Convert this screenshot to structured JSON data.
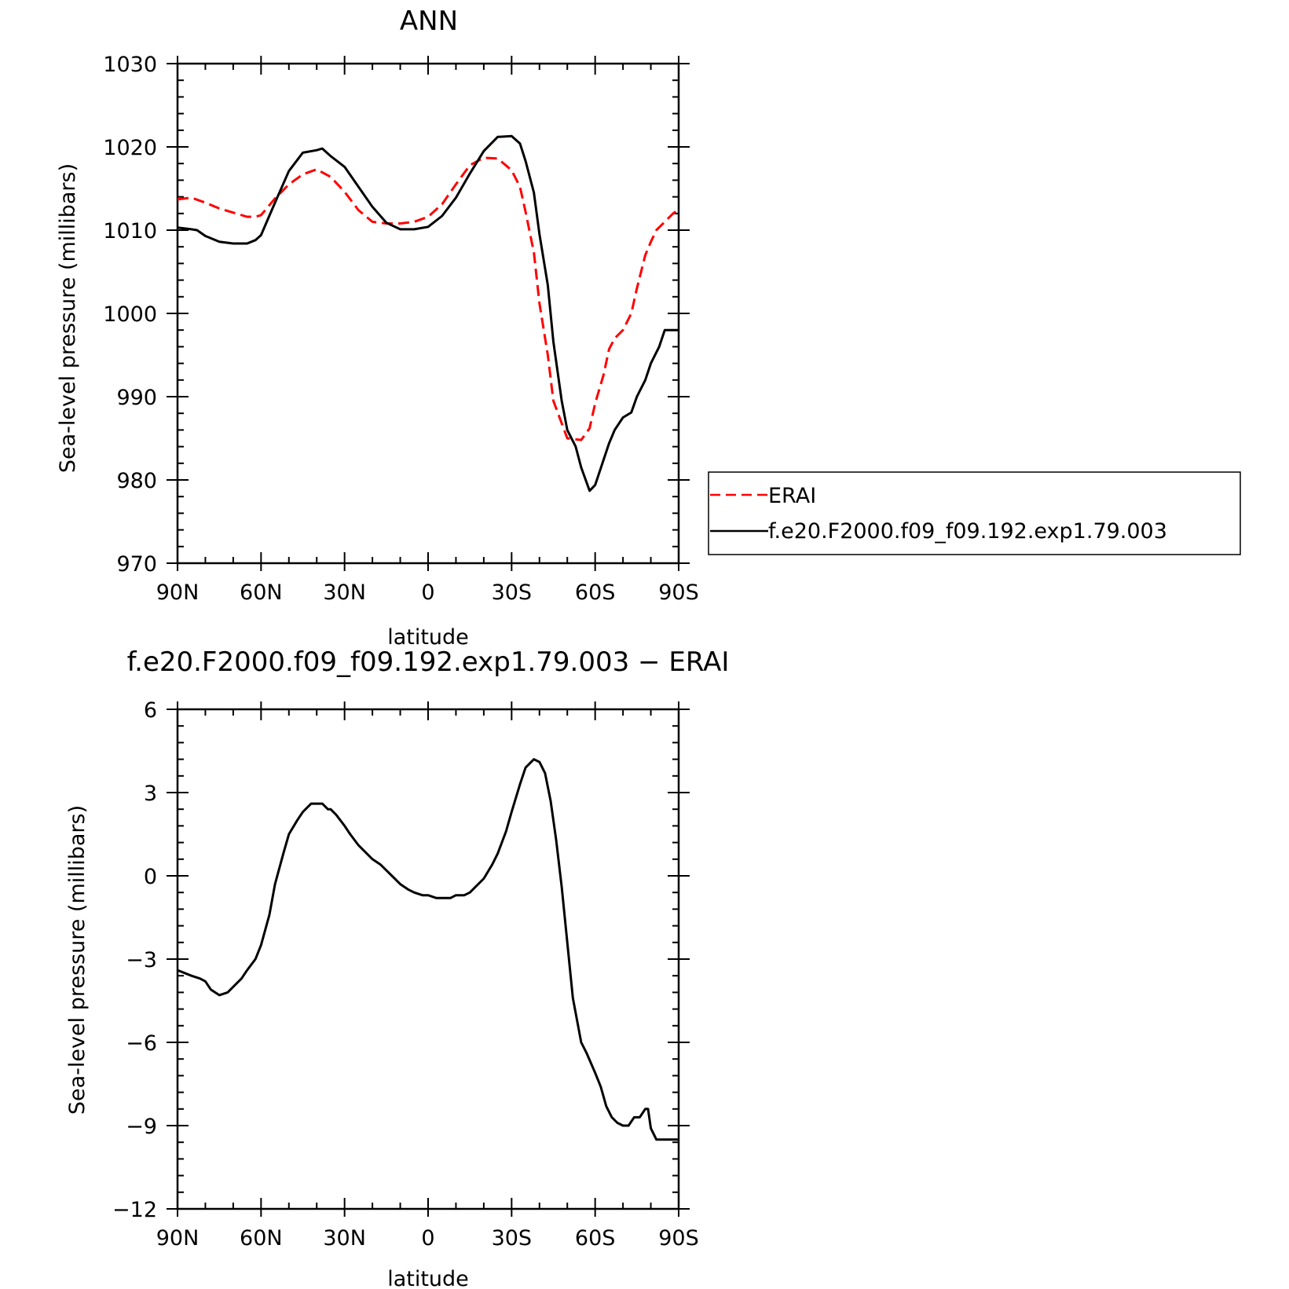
{
  "chart_data": [
    {
      "type": "line",
      "title": "ANN",
      "xlabel": "latitude",
      "ylabel": "Sea-level pressure (millibars)",
      "xlim": [
        90,
        -90
      ],
      "ylim": [
        970,
        1030
      ],
      "x_ticks": [
        {
          "value": 90,
          "label": "90N"
        },
        {
          "value": 60,
          "label": "60N"
        },
        {
          "value": 30,
          "label": "30N"
        },
        {
          "value": 0,
          "label": "0"
        },
        {
          "value": -30,
          "label": "30S"
        },
        {
          "value": -60,
          "label": "60S"
        },
        {
          "value": -90,
          "label": "90S"
        }
      ],
      "y_ticks": [
        {
          "value": 1030,
          "label": "1030"
        },
        {
          "value": 1020,
          "label": "1020"
        },
        {
          "value": 1010,
          "label": "1010"
        },
        {
          "value": 1000,
          "label": "1000"
        },
        {
          "value": 990,
          "label": "990"
        },
        {
          "value": 980,
          "label": "980"
        },
        {
          "value": 970,
          "label": "970"
        }
      ],
      "legend": "right",
      "series": [
        {
          "name": "ERAI",
          "color": "#ff0000",
          "dash": true,
          "x": [
            90,
            85,
            80,
            75,
            70,
            65,
            62,
            60,
            55,
            50,
            45,
            40,
            35,
            30,
            25,
            20,
            15,
            10,
            5,
            0,
            -5,
            -10,
            -15,
            -20,
            -25,
            -30,
            -33,
            -35,
            -38,
            -40,
            -43,
            -45,
            -50,
            -55,
            -58,
            -60,
            -63,
            -65,
            -67,
            -70,
            -73,
            -75,
            -78,
            -80,
            -82,
            -85,
            -88,
            -90
          ],
          "y": [
            1013.7,
            1013.9,
            1013.3,
            1012.6,
            1012.1,
            1011.6,
            1011.6,
            1011.8,
            1013.8,
            1015.5,
            1016.7,
            1017.3,
            1016.4,
            1014.6,
            1012.4,
            1011.0,
            1010.8,
            1010.8,
            1011.0,
            1011.6,
            1013.1,
            1015.5,
            1017.8,
            1018.7,
            1018.6,
            1017.2,
            1015.2,
            1012.2,
            1007.3,
            1001.2,
            995.0,
            989.5,
            985.0,
            984.8,
            986.2,
            989.2,
            992.6,
            995.7,
            997.0,
            998.0,
            1000.0,
            1003.0,
            1007.0,
            1008.6,
            1010.0,
            1011.0,
            1012.0,
            1012.5
          ],
          "note_x_units": "latitude in degrees, positive = N"
        },
        {
          "name": "f.e20.F2000.f09_f09.192.exp1.79.003",
          "color": "#000000",
          "dash": false,
          "x": [
            90,
            85,
            83,
            80,
            75,
            70,
            67,
            65,
            62,
            60,
            55,
            50,
            45,
            40,
            38,
            35,
            30,
            25,
            20,
            15,
            10,
            5,
            0,
            -5,
            -10,
            -15,
            -20,
            -25,
            -30,
            -33,
            -35,
            -38,
            -40,
            -43,
            -45,
            -48,
            -50,
            -53,
            -55,
            -58,
            -60,
            -62,
            -63,
            -65,
            -67,
            -70,
            -73,
            -75,
            -78,
            -80,
            -83,
            -85,
            -88,
            -90
          ],
          "y": [
            1010.3,
            1010.1,
            1010.0,
            1009.3,
            1008.6,
            1008.4,
            1008.4,
            1008.4,
            1008.8,
            1009.4,
            1013.3,
            1017.1,
            1019.3,
            1019.6,
            1019.8,
            1018.9,
            1017.6,
            1015.2,
            1012.8,
            1010.9,
            1010.1,
            1010.1,
            1010.4,
            1011.7,
            1013.9,
            1016.8,
            1019.5,
            1021.2,
            1021.3,
            1020.4,
            1018.3,
            1014.5,
            1009.5,
            1003.4,
            996.6,
            989.5,
            986.0,
            984.0,
            981.5,
            978.7,
            979.4,
            981.4,
            982.4,
            984.4,
            986.0,
            987.5,
            988.1,
            990.0,
            992.0,
            994.0,
            996.0,
            998.0,
            998.0,
            998.0
          ]
        }
      ]
    },
    {
      "type": "line",
      "title": "f.e20.F2000.f09_f09.192.exp1.79.003 − ERAI",
      "xlabel": "latitude",
      "ylabel": "Sea-level pressure (millibars)",
      "xlim": [
        90,
        -90
      ],
      "ylim": [
        -12,
        6
      ],
      "x_ticks": [
        {
          "value": 90,
          "label": "90N"
        },
        {
          "value": 60,
          "label": "60N"
        },
        {
          "value": 30,
          "label": "30N"
        },
        {
          "value": 0,
          "label": "0"
        },
        {
          "value": -30,
          "label": "30S"
        },
        {
          "value": -60,
          "label": "60S"
        },
        {
          "value": -90,
          "label": "90S"
        }
      ],
      "y_ticks": [
        {
          "value": 6,
          "label": "6"
        },
        {
          "value": 3,
          "label": "3"
        },
        {
          "value": 0,
          "label": "0"
        },
        {
          "value": -3,
          "label": "−3"
        },
        {
          "value": -6,
          "label": "−6"
        },
        {
          "value": -9,
          "label": "−9"
        },
        {
          "value": -12,
          "label": "−12"
        }
      ],
      "series": [
        {
          "color": "#000000",
          "dash": false,
          "x": [
            90,
            85,
            82,
            80,
            78,
            75,
            72,
            70,
            67,
            65,
            62,
            60,
            57,
            55,
            52,
            50,
            47,
            45,
            42,
            40,
            38,
            36,
            35,
            33,
            30,
            28,
            25,
            22,
            20,
            17,
            15,
            12,
            10,
            7,
            5,
            2,
            0,
            -3,
            -5,
            -8,
            -10,
            -13,
            -15,
            -18,
            -20,
            -23,
            -25,
            -28,
            -30,
            -33,
            -35,
            -38,
            -40,
            -42,
            -44,
            -46,
            -48,
            -50,
            -52,
            -55,
            -57,
            -60,
            -62,
            -64,
            -66,
            -68,
            -70,
            -72,
            -74,
            -76,
            -78,
            -79,
            -80,
            -81,
            -82,
            -83,
            -84,
            -85,
            -86,
            -87,
            -88,
            -89,
            -90
          ],
          "y": [
            -3.4,
            -3.6,
            -3.7,
            -3.8,
            -4.1,
            -4.3,
            -4.2,
            -4.0,
            -3.7,
            -3.4,
            -3.0,
            -2.5,
            -1.4,
            -0.3,
            0.8,
            1.5,
            2.0,
            2.3,
            2.6,
            2.6,
            2.6,
            2.4,
            2.4,
            2.2,
            1.8,
            1.5,
            1.1,
            0.8,
            0.6,
            0.4,
            0.2,
            -0.1,
            -0.3,
            -0.5,
            -0.6,
            -0.7,
            -0.7,
            -0.8,
            -0.8,
            -0.8,
            -0.7,
            -0.7,
            -0.6,
            -0.3,
            -0.1,
            0.4,
            0.8,
            1.6,
            2.3,
            3.3,
            3.9,
            4.2,
            4.1,
            3.7,
            2.7,
            1.3,
            -0.4,
            -2.4,
            -4.4,
            -6.0,
            -6.4,
            -7.1,
            -7.6,
            -8.3,
            -8.7,
            -8.9,
            -9.0,
            -9.0,
            -8.7,
            -8.7,
            -8.4,
            -8.4,
            -9.1,
            -9.3,
            -9.5,
            -9.5,
            -9.5,
            -9.5,
            -9.5,
            -9.5,
            -9.5,
            -9.5,
            -9.5
          ]
        }
      ]
    }
  ]
}
